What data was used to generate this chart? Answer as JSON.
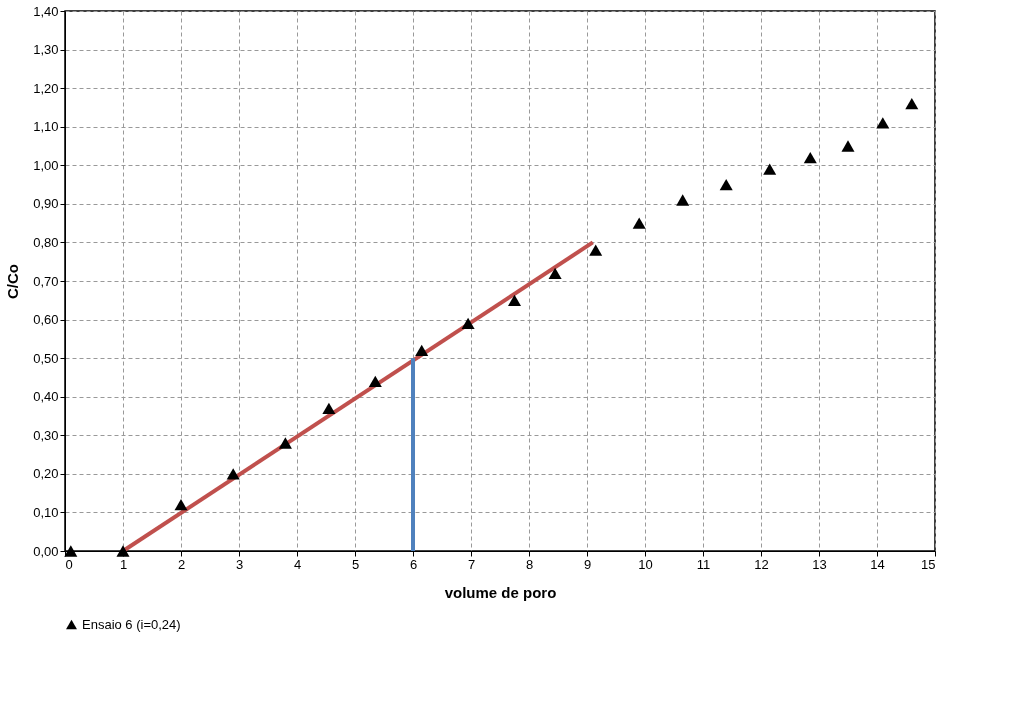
{
  "chart_data": {
    "type": "scatter",
    "xlabel": "volume de poro",
    "ylabel": "C/Co",
    "xlim": [
      0,
      15
    ],
    "xticks": [
      0,
      1,
      2,
      3,
      4,
      5,
      6,
      7,
      8,
      9,
      10,
      11,
      12,
      13,
      14,
      15
    ],
    "ylim": [
      0,
      1.4
    ],
    "yticks": [
      {
        "value": 0,
        "label": "0,00"
      },
      {
        "value": 0.1,
        "label": "0,10"
      },
      {
        "value": 0.2,
        "label": "0,20"
      },
      {
        "value": 0.3,
        "label": "0,30"
      },
      {
        "value": 0.4,
        "label": "0,40"
      },
      {
        "value": 0.5,
        "label": "0,50"
      },
      {
        "value": 0.6,
        "label": "0,60"
      },
      {
        "value": 0.7,
        "label": "0,70"
      },
      {
        "value": 0.8,
        "label": "0,80"
      },
      {
        "value": 0.9,
        "label": "0,90"
      },
      {
        "value": 1.0,
        "label": "1,00"
      },
      {
        "value": 1.1,
        "label": "1,10"
      },
      {
        "value": 1.2,
        "label": "1,20"
      },
      {
        "value": 1.3,
        "label": "1,30"
      },
      {
        "value": 1.4,
        "label": "1,40"
      }
    ],
    "grid": true,
    "legend": "bottom",
    "marker": "triangle",
    "series": [
      {
        "name": "Ensaio 6 (i=0,24)",
        "color": "#000000",
        "x": [
          0.1,
          1,
          2,
          2.9,
          3.8,
          4.55,
          5.35,
          6.15,
          6.95,
          7.75,
          8.45,
          9.15,
          9.9,
          10.65,
          11.4,
          12.15,
          12.85,
          13.5,
          14.1,
          14.6
        ],
        "values": [
          0,
          0,
          0.12,
          0.2,
          0.28,
          0.37,
          0.44,
          0.52,
          0.59,
          0.65,
          0.72,
          0.78,
          0.85,
          0.91,
          0.95,
          0.99,
          1.02,
          1.05,
          1.11,
          1.16
        ]
      },
      {
        "color": "#c0504d",
        "type": "line",
        "marker": "none",
        "x": [
          1,
          9.1
        ],
        "values": [
          0,
          0.8
        ]
      },
      {
        "color": "#4f81bd",
        "type": "line",
        "marker": "none",
        "x": [
          6,
          6
        ],
        "values": [
          0,
          0.5
        ]
      }
    ]
  }
}
